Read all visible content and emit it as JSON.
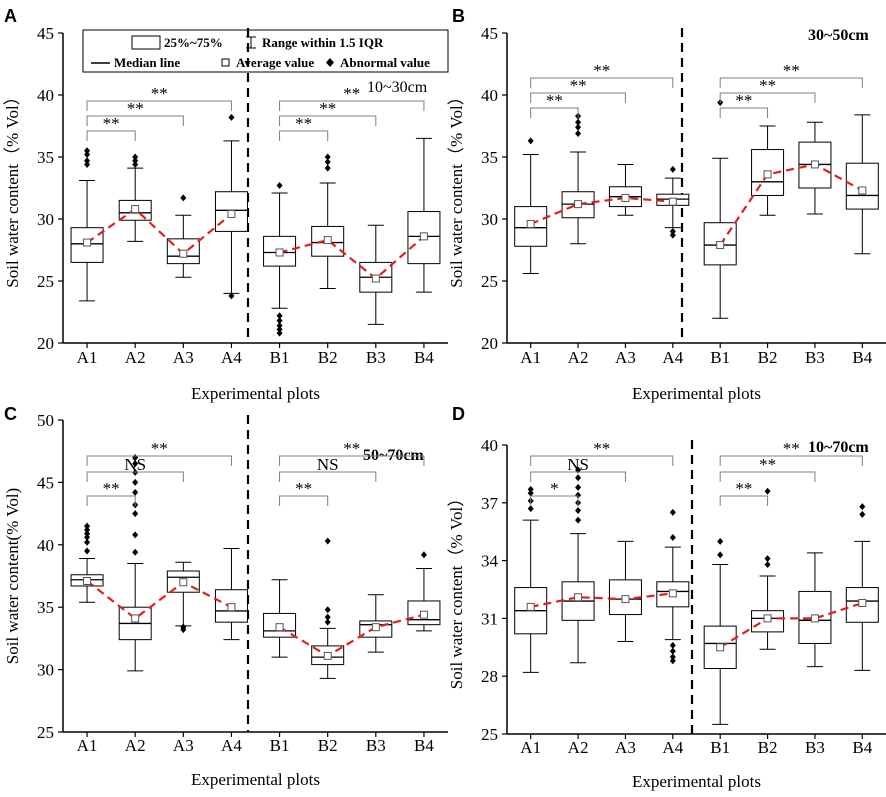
{
  "panels": [
    {
      "letter": "A",
      "depth": "10~30cm"
    },
    {
      "letter": "B",
      "depth": "30~50cm"
    },
    {
      "letter": "C",
      "depth": "50~70cm"
    },
    {
      "letter": "D",
      "depth": "10~70cm"
    }
  ],
  "legend": {
    "box": "25%~75%",
    "range": "Range within 1.5 IQR",
    "median": "Median line",
    "average": "Average value",
    "abnormal": "Abnormal value"
  },
  "colors": {
    "trend": "#e02020",
    "axis": "#000000",
    "bracket": "#7f7f7f"
  },
  "chart_data": [
    {
      "type": "box",
      "title": "10~30cm",
      "panel": "A",
      "xlabel": "Experimental plots",
      "ylabel": "Soil water content（% Vol）",
      "ylim": [
        20,
        45
      ],
      "yticks": [
        "20",
        "25",
        "30",
        "35",
        "40",
        "45"
      ],
      "categories": [
        "A1",
        "A2",
        "A3",
        "A4",
        "B1",
        "B2",
        "B3",
        "B4"
      ],
      "boxes": [
        {
          "min": 23.4,
          "q1": 26.5,
          "median": 28.0,
          "q3": 29.3,
          "max": 33.1,
          "mean": 28.1,
          "outliers": [
            34.4,
            34.7,
            35.2,
            35.5
          ]
        },
        {
          "min": 28.2,
          "q1": 29.9,
          "median": 30.5,
          "q3": 31.5,
          "max": 34.1,
          "mean": 30.8,
          "outliers": [
            34.4,
            34.7,
            35.0
          ]
        },
        {
          "min": 25.3,
          "q1": 26.4,
          "median": 27.0,
          "q3": 28.4,
          "max": 30.3,
          "mean": 27.2,
          "outliers": [
            31.7
          ]
        },
        {
          "min": 24.0,
          "q1": 29.0,
          "median": 30.7,
          "q3": 32.2,
          "max": 36.3,
          "mean": 30.4,
          "outliers": [
            38.2,
            23.8
          ]
        },
        {
          "min": 22.8,
          "q1": 26.2,
          "median": 27.3,
          "q3": 28.6,
          "max": 32.1,
          "mean": 27.3,
          "outliers": [
            32.7,
            22.2,
            21.8,
            21.4,
            21.1,
            20.8
          ]
        },
        {
          "min": 24.4,
          "q1": 27.0,
          "median": 28.1,
          "q3": 29.4,
          "max": 32.9,
          "mean": 28.3,
          "outliers": [
            34.1,
            34.6,
            35.0
          ]
        },
        {
          "min": 21.5,
          "q1": 24.1,
          "median": 25.3,
          "q3": 26.5,
          "max": 29.5,
          "mean": 25.2,
          "outliers": []
        },
        {
          "min": 24.1,
          "q1": 26.4,
          "median": 28.6,
          "q3": 30.6,
          "max": 36.5,
          "mean": 28.6,
          "outliers": []
        }
      ],
      "brackets": [
        {
          "from": "A1",
          "to": "A2",
          "label": "**"
        },
        {
          "from": "A1",
          "to": "A3",
          "label": "**"
        },
        {
          "from": "A1",
          "to": "A4",
          "label": "**"
        },
        {
          "from": "B1",
          "to": "B2",
          "label": "**"
        },
        {
          "from": "B1",
          "to": "B3",
          "label": "**"
        },
        {
          "from": "B1",
          "to": "B4",
          "label": "**"
        }
      ]
    },
    {
      "type": "box",
      "title": "30~50cm",
      "panel": "B",
      "xlabel": "Experimental plots",
      "ylabel": "Soil water content（% Vol）",
      "ylim": [
        20,
        45
      ],
      "yticks": [
        "20",
        "25",
        "30",
        "35",
        "40",
        "45"
      ],
      "categories": [
        "A1",
        "A2",
        "A3",
        "A4",
        "B1",
        "B2",
        "B3",
        "B4"
      ],
      "boxes": [
        {
          "min": 25.6,
          "q1": 27.8,
          "median": 29.3,
          "q3": 31.0,
          "max": 35.2,
          "mean": 29.6,
          "outliers": [
            36.3
          ]
        },
        {
          "min": 28.0,
          "q1": 30.1,
          "median": 31.2,
          "q3": 32.2,
          "max": 35.4,
          "mean": 31.2,
          "outliers": [
            36.9,
            37.4,
            37.8,
            38.3
          ]
        },
        {
          "min": 30.3,
          "q1": 31.0,
          "median": 31.8,
          "q3": 32.6,
          "max": 34.4,
          "mean": 31.7,
          "outliers": []
        },
        {
          "min": 29.3,
          "q1": 31.1,
          "median": 31.6,
          "q3": 32.0,
          "max": 33.3,
          "mean": 31.4,
          "outliers": [
            34.0,
            29.0,
            28.7
          ]
        },
        {
          "min": 22.0,
          "q1": 26.3,
          "median": 27.9,
          "q3": 29.7,
          "max": 34.9,
          "mean": 27.9,
          "outliers": [
            39.4
          ]
        },
        {
          "min": 30.3,
          "q1": 31.9,
          "median": 33.0,
          "q3": 35.6,
          "max": 37.5,
          "mean": 33.6,
          "outliers": []
        },
        {
          "min": 30.4,
          "q1": 32.5,
          "median": 34.4,
          "q3": 36.2,
          "max": 37.8,
          "mean": 34.4,
          "outliers": []
        },
        {
          "min": 27.2,
          "q1": 30.8,
          "median": 31.9,
          "q3": 34.5,
          "max": 38.4,
          "mean": 32.3,
          "outliers": []
        }
      ],
      "brackets": [
        {
          "from": "A1",
          "to": "A2",
          "label": "**"
        },
        {
          "from": "A1",
          "to": "A3",
          "label": "**"
        },
        {
          "from": "A1",
          "to": "A4",
          "label": "**"
        },
        {
          "from": "B1",
          "to": "B2",
          "label": "**"
        },
        {
          "from": "B1",
          "to": "B3",
          "label": "**"
        },
        {
          "from": "B1",
          "to": "B4",
          "label": "**"
        }
      ]
    },
    {
      "type": "box",
      "title": "50~70cm",
      "panel": "C",
      "xlabel": "Experimental plots",
      "ylabel": "Soil water content(% Vol)",
      "ylim": [
        25,
        50
      ],
      "yticks": [
        "25",
        "30",
        "35",
        "40",
        "45",
        "50"
      ],
      "categories": [
        "A1",
        "A2",
        "A3",
        "A4",
        "B1",
        "B2",
        "B3",
        "B4"
      ],
      "boxes": [
        {
          "min": 35.4,
          "q1": 36.7,
          "median": 37.2,
          "q3": 37.6,
          "max": 38.9,
          "mean": 37.1,
          "outliers": [
            39.5,
            40.2,
            40.6,
            40.9,
            41.2,
            41.5
          ]
        },
        {
          "min": 29.9,
          "q1": 32.4,
          "median": 33.7,
          "q3": 35.0,
          "max": 38.5,
          "mean": 34.1,
          "outliers": [
            39.4,
            40.8,
            42.5,
            43.2,
            44.2,
            45.0,
            45.8,
            46.5,
            47.0
          ]
        },
        {
          "min": 33.5,
          "q1": 36.2,
          "median": 37.4,
          "q3": 37.9,
          "max": 38.6,
          "mean": 37.0,
          "outliers": [
            33.4,
            33.2
          ]
        },
        {
          "min": 32.4,
          "q1": 33.8,
          "median": 34.7,
          "q3": 36.4,
          "max": 39.7,
          "mean": 35.0,
          "outliers": []
        },
        {
          "min": 31.0,
          "q1": 32.6,
          "median": 33.1,
          "q3": 34.5,
          "max": 37.2,
          "mean": 33.4,
          "outliers": []
        },
        {
          "min": 29.3,
          "q1": 30.4,
          "median": 31.0,
          "q3": 31.9,
          "max": 33.3,
          "mean": 31.1,
          "outliers": [
            33.8,
            34.2,
            34.8,
            40.3
          ]
        },
        {
          "min": 31.4,
          "q1": 32.6,
          "median": 33.6,
          "q3": 33.9,
          "max": 36.0,
          "mean": 33.4,
          "outliers": []
        },
        {
          "min": 33.1,
          "q1": 33.6,
          "median": 34.0,
          "q3": 35.5,
          "max": 38.1,
          "mean": 34.4,
          "outliers": [
            39.2
          ]
        }
      ],
      "brackets": [
        {
          "from": "A1",
          "to": "A2",
          "label": "**"
        },
        {
          "from": "A1",
          "to": "A3",
          "label": "NS"
        },
        {
          "from": "A1",
          "to": "A4",
          "label": "**"
        },
        {
          "from": "B1",
          "to": "B2",
          "label": "**"
        },
        {
          "from": "B1",
          "to": "B3",
          "label": "NS"
        },
        {
          "from": "B1",
          "to": "B4",
          "label": "**"
        }
      ]
    },
    {
      "type": "box",
      "title": "10~70cm",
      "panel": "D",
      "xlabel": "Experimental plots",
      "ylabel": "Soil water content（% Vol）",
      "ylim": [
        25,
        40
      ],
      "yticks": [
        "25",
        "28",
        "31",
        "34",
        "37",
        "40"
      ],
      "categories": [
        "A1",
        "A2",
        "A3",
        "A4",
        "B1",
        "B2",
        "B3",
        "B4"
      ],
      "boxes": [
        {
          "min": 28.2,
          "q1": 30.2,
          "median": 31.4,
          "q3": 32.6,
          "max": 36.1,
          "mean": 31.6,
          "outliers": [
            36.7,
            37.1,
            37.5,
            37.7
          ]
        },
        {
          "min": 28.7,
          "q1": 30.9,
          "median": 31.9,
          "q3": 32.9,
          "max": 35.4,
          "mean": 32.1,
          "outliers": [
            36.1,
            36.6,
            37.0,
            37.4,
            37.8,
            38.3,
            38.7
          ]
        },
        {
          "min": 29.8,
          "q1": 31.2,
          "median": 32.0,
          "q3": 33.0,
          "max": 35.0,
          "mean": 32.0,
          "outliers": []
        },
        {
          "min": 29.9,
          "q1": 31.6,
          "median": 32.4,
          "q3": 32.9,
          "max": 34.7,
          "mean": 32.3,
          "outliers": [
            35.2,
            36.5,
            29.6,
            29.3,
            29.0,
            28.8
          ]
        },
        {
          "min": 25.5,
          "q1": 28.4,
          "median": 29.7,
          "q3": 30.6,
          "max": 33.8,
          "mean": 29.5,
          "outliers": [
            34.3,
            35.0
          ]
        },
        {
          "min": 29.4,
          "q1": 30.3,
          "median": 31.0,
          "q3": 31.4,
          "max": 33.2,
          "mean": 31.0,
          "outliers": [
            33.8,
            34.1,
            37.6
          ]
        },
        {
          "min": 28.5,
          "q1": 29.7,
          "median": 30.9,
          "q3": 32.4,
          "max": 34.4,
          "mean": 31.0,
          "outliers": []
        },
        {
          "min": 28.3,
          "q1": 30.8,
          "median": 31.9,
          "q3": 32.6,
          "max": 35.0,
          "mean": 31.8,
          "outliers": [
            36.4,
            36.8
          ]
        }
      ],
      "brackets": [
        {
          "from": "A1",
          "to": "A2",
          "label": "*"
        },
        {
          "from": "A1",
          "to": "A3",
          "label": "NS"
        },
        {
          "from": "A1",
          "to": "A4",
          "label": "**"
        },
        {
          "from": "B1",
          "to": "B2",
          "label": "**"
        },
        {
          "from": "B1",
          "to": "B3",
          "label": "**"
        },
        {
          "from": "B1",
          "to": "B4",
          "label": "**"
        }
      ]
    }
  ]
}
